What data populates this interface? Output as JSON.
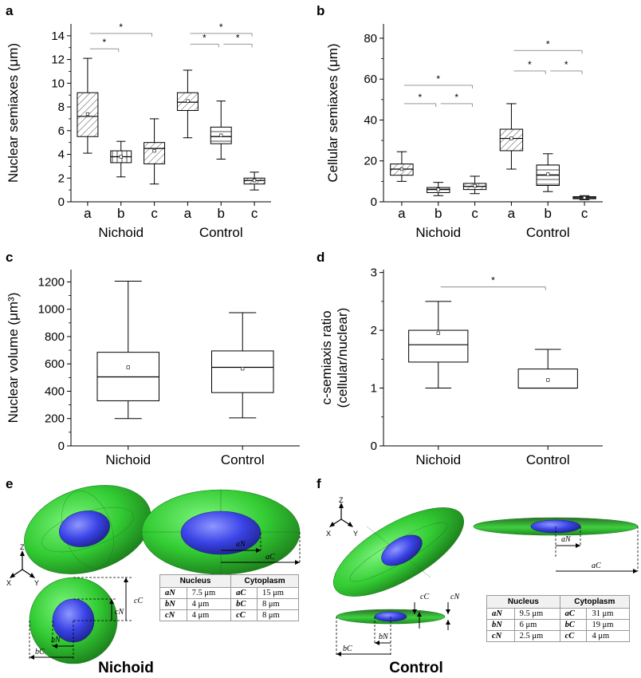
{
  "panels": {
    "a": "a",
    "b": "b",
    "c": "c",
    "d": "d",
    "e": "e",
    "f": "f"
  },
  "chart_data": [
    {
      "id": "a",
      "type": "box",
      "ylabel": "Nuclear semiaxes (μm)",
      "ylim": [
        0,
        15
      ],
      "yticks": [
        0,
        2,
        4,
        6,
        8,
        10,
        12,
        14
      ],
      "categories": [
        "a",
        "b",
        "c",
        "a",
        "b",
        "c"
      ],
      "groups": [
        {
          "label": "Nichoid",
          "span": [
            0,
            2
          ]
        },
        {
          "label": "Control",
          "span": [
            3,
            5
          ]
        }
      ],
      "boxes": [
        {
          "min": 4.1,
          "q1": 5.5,
          "median": 7.2,
          "q3": 9.2,
          "max": 12.1,
          "mean": 7.4,
          "hatch": "diag"
        },
        {
          "min": 2.1,
          "q1": 3.3,
          "median": 3.8,
          "q3": 4.3,
          "max": 5.1,
          "mean": 3.8,
          "hatch": "vert"
        },
        {
          "min": 1.5,
          "q1": 3.2,
          "median": 4.5,
          "q3": 5.0,
          "max": 7.0,
          "mean": 4.3,
          "hatch": "diag"
        },
        {
          "min": 5.4,
          "q1": 7.7,
          "median": 8.4,
          "q3": 9.2,
          "max": 11.1,
          "mean": 8.5,
          "hatch": "diag"
        },
        {
          "min": 3.6,
          "q1": 4.9,
          "median": 5.5,
          "q3": 6.3,
          "max": 8.5,
          "mean": 5.6,
          "hatch": "horiz"
        },
        {
          "min": 1.0,
          "q1": 1.5,
          "median": 1.8,
          "q3": 2.0,
          "max": 2.5,
          "mean": 1.8,
          "hatch": "diag"
        }
      ],
      "significance": [
        {
          "from": 0,
          "to": 2,
          "y": 14.2,
          "label": "*"
        },
        {
          "from": 0,
          "to": 1,
          "y": 12.9,
          "label": "*"
        },
        {
          "from": 3,
          "to": 5,
          "y": 14.2,
          "label": "*"
        },
        {
          "from": 3,
          "to": 4,
          "y": 13.3,
          "label": "*"
        },
        {
          "from": 4,
          "to": 5,
          "y": 13.3,
          "label": "*"
        }
      ]
    },
    {
      "id": "b",
      "type": "box",
      "ylabel": "Cellular semiaxes (μm)",
      "ylim": [
        0,
        87
      ],
      "yticks": [
        0,
        20,
        40,
        60,
        80
      ],
      "categories": [
        "a",
        "b",
        "c",
        "a",
        "b",
        "c"
      ],
      "groups": [
        {
          "label": "Nichoid",
          "span": [
            0,
            2
          ]
        },
        {
          "label": "Control",
          "span": [
            3,
            5
          ]
        }
      ],
      "boxes": [
        {
          "min": 10,
          "q1": 13,
          "median": 16,
          "q3": 18.5,
          "max": 24.5,
          "mean": 16,
          "hatch": "diag"
        },
        {
          "min": 3,
          "q1": 4.5,
          "median": 6,
          "q3": 7,
          "max": 9.5,
          "mean": 6,
          "hatch": "horiz"
        },
        {
          "min": 4,
          "q1": 6,
          "median": 7.5,
          "q3": 9,
          "max": 12.5,
          "mean": 7.8,
          "hatch": "diag"
        },
        {
          "min": 16,
          "q1": 25,
          "median": 31,
          "q3": 35.5,
          "max": 48,
          "mean": 31,
          "hatch": "diag"
        },
        {
          "min": 5,
          "q1": 8,
          "median": 13,
          "q3": 18,
          "max": 23.5,
          "mean": 13.5,
          "hatch": "horiz"
        },
        {
          "min": 1,
          "q1": 1.5,
          "median": 2,
          "q3": 2.5,
          "max": 3,
          "mean": 2,
          "hatch": "diag"
        }
      ],
      "significance": [
        {
          "from": 0,
          "to": 2,
          "y": 57,
          "label": "*"
        },
        {
          "from": 0,
          "to": 1,
          "y": 48,
          "label": "*"
        },
        {
          "from": 1,
          "to": 2,
          "y": 48,
          "label": "*"
        },
        {
          "from": 3,
          "to": 5,
          "y": 74,
          "label": "*"
        },
        {
          "from": 3,
          "to": 4,
          "y": 64,
          "label": "*"
        },
        {
          "from": 4,
          "to": 5,
          "y": 64,
          "label": "*"
        }
      ]
    },
    {
      "id": "c",
      "type": "box",
      "ylabel": "Nuclear volume (μm³)",
      "ylim": [
        0,
        1290
      ],
      "yticks": [
        0,
        200,
        400,
        600,
        800,
        1000,
        1200
      ],
      "categories": [
        "Nichoid",
        "Control"
      ],
      "boxes": [
        {
          "min": 200,
          "q1": 330,
          "median": 505,
          "q3": 685,
          "max": 1205,
          "mean": 575,
          "hatch": "none"
        },
        {
          "min": 205,
          "q1": 390,
          "median": 575,
          "q3": 695,
          "max": 975,
          "mean": 565,
          "hatch": "none"
        }
      ],
      "significance": []
    },
    {
      "id": "d",
      "type": "box",
      "ylabel": "c-semiaxis ratio (cellular/nuclear)",
      "ylim": [
        0,
        3.05
      ],
      "yticks": [
        0,
        1,
        2,
        3
      ],
      "categories": [
        "Nichoid",
        "Control"
      ],
      "boxes": [
        {
          "min": 1.0,
          "q1": 1.45,
          "median": 1.75,
          "q3": 2.0,
          "max": 2.5,
          "mean": 1.95,
          "hatch": "none"
        },
        {
          "min": 1.0,
          "q1": 1.0,
          "median": 1.0,
          "q3": 1.33,
          "max": 1.67,
          "mean": 1.14,
          "hatch": "none"
        }
      ],
      "significance": [
        {
          "from": 0,
          "to": 1,
          "y": 2.75,
          "label": "*"
        }
      ]
    }
  ],
  "models": {
    "nichoid": {
      "caption": "Nichoid",
      "axes": {
        "x": "X",
        "y": "Y",
        "z": "Z"
      },
      "labels": {
        "aN": "aN",
        "aC": "aC",
        "bN": "bN",
        "bC": "bC",
        "cN": "cN",
        "cC": "cC"
      },
      "table": {
        "headers": [
          "Nucleus",
          "",
          "Cytoplasm",
          ""
        ],
        "rows": [
          [
            "aN",
            "7.5 μm",
            "aC",
            "15 μm"
          ],
          [
            "bN",
            "4 μm",
            "bC",
            "8 μm"
          ],
          [
            "cN",
            "4 μm",
            "cC",
            "8 μm"
          ]
        ]
      },
      "colors": {
        "cytoplasm": "#33cc33",
        "nucleus": "#3a43e6"
      }
    },
    "control": {
      "caption": "Control",
      "axes": {
        "x": "X",
        "y": "Y",
        "z": "Z"
      },
      "labels": {
        "aN": "aN",
        "aC": "aC",
        "bN": "bN",
        "bC": "bC",
        "cN": "cN",
        "cC": "cC"
      },
      "table": {
        "headers": [
          "Nucleus",
          "",
          "Cytoplasm",
          ""
        ],
        "rows": [
          [
            "aN",
            "9.5 μm",
            "aC",
            "31 μm"
          ],
          [
            "bN",
            "6 μm",
            "bC",
            "19 μm"
          ],
          [
            "cN",
            "2.5 μm",
            "cC",
            "4 μm"
          ]
        ]
      },
      "colors": {
        "cytoplasm": "#33cc33",
        "nucleus": "#3a43e6"
      }
    }
  }
}
